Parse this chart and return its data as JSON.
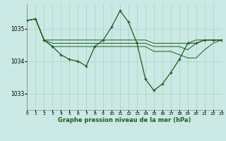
{
  "bg_color": "#cbe9e4",
  "grid_color": "#a8d5cc",
  "line_color": "#1a5c1a",
  "xlabel": "Graphe pression niveau de la mer (hPa)",
  "xlabel_color": "#1a5c1a",
  "ylim": [
    1032.5,
    1035.75
  ],
  "xlim": [
    0,
    23
  ],
  "yticks": [
    1033,
    1034,
    1035
  ],
  "xticks": [
    0,
    1,
    2,
    3,
    4,
    5,
    6,
    7,
    8,
    9,
    10,
    11,
    12,
    13,
    14,
    15,
    16,
    17,
    18,
    19,
    20,
    21,
    22,
    23
  ],
  "main_x": [
    0,
    1,
    2,
    3,
    4,
    5,
    6,
    7,
    8,
    9,
    10,
    11,
    12,
    13,
    14,
    15,
    16,
    17,
    18,
    19,
    20,
    21,
    22,
    23
  ],
  "main_y": [
    1035.25,
    1035.3,
    1034.65,
    1034.45,
    1034.2,
    1034.05,
    1034.0,
    1033.85,
    1034.45,
    1034.65,
    1035.05,
    1035.55,
    1035.2,
    1034.55,
    1033.45,
    1033.1,
    1033.3,
    1033.65,
    1034.05,
    1034.55,
    1034.55,
    1034.65,
    1034.65,
    1034.65
  ],
  "ref1_x": [
    0,
    1,
    2,
    3,
    4,
    5,
    6,
    7,
    8,
    9,
    10,
    11,
    12,
    13,
    14,
    15,
    16,
    17,
    18,
    19,
    20,
    21,
    22,
    23
  ],
  "ref1_y": [
    1035.25,
    1035.3,
    1034.65,
    1034.65,
    1034.65,
    1034.65,
    1034.65,
    1034.65,
    1034.65,
    1034.65,
    1034.65,
    1034.65,
    1034.65,
    1034.65,
    1034.65,
    1034.55,
    1034.55,
    1034.55,
    1034.55,
    1034.55,
    1034.65,
    1034.65,
    1034.65,
    1034.65
  ],
  "ref2_x": [
    0,
    1,
    2,
    3,
    4,
    5,
    6,
    7,
    8,
    9,
    10,
    11,
    12,
    13,
    14,
    15,
    16,
    17,
    18,
    19,
    20,
    21,
    22,
    23
  ],
  "ref2_y": [
    1035.25,
    1035.3,
    1034.65,
    1034.55,
    1034.55,
    1034.55,
    1034.55,
    1034.55,
    1034.55,
    1034.55,
    1034.55,
    1034.55,
    1034.55,
    1034.55,
    1034.55,
    1034.45,
    1034.45,
    1034.45,
    1034.45,
    1034.35,
    1034.55,
    1034.65,
    1034.65,
    1034.65
  ],
  "ref3_x": [
    0,
    1,
    2,
    3,
    4,
    5,
    6,
    7,
    8,
    9,
    10,
    11,
    12,
    13,
    14,
    15,
    16,
    17,
    18,
    19,
    20,
    21,
    22,
    23
  ],
  "ref3_y": [
    1035.25,
    1035.3,
    1034.65,
    1034.45,
    1034.45,
    1034.45,
    1034.45,
    1034.45,
    1034.45,
    1034.45,
    1034.45,
    1034.45,
    1034.45,
    1034.45,
    1034.45,
    1034.3,
    1034.3,
    1034.3,
    1034.2,
    1034.1,
    1034.1,
    1034.35,
    1034.55,
    1034.65
  ]
}
